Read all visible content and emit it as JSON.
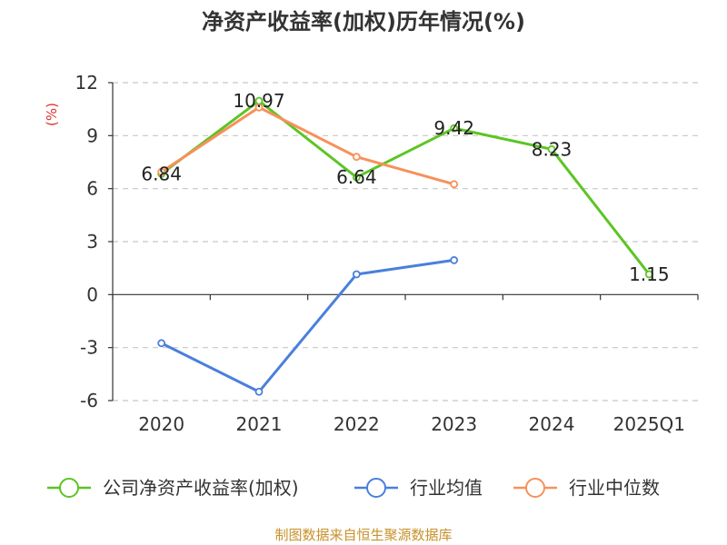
{
  "chart_data": {
    "type": "line",
    "title": "净资产收益率(加权)历年情况(%)",
    "ylabel": "(%)",
    "categories": [
      "2020",
      "2021",
      "2022",
      "2023",
      "2024",
      "2025Q1"
    ],
    "ylim": [
      -6,
      12
    ],
    "yticks": [
      12,
      9,
      6,
      3,
      0,
      -3,
      -6
    ],
    "grid": true,
    "legend_position": "bottom",
    "series": [
      {
        "name": "公司净资产收益率(加权)",
        "color": "#5cc524",
        "values": [
          6.84,
          10.97,
          6.64,
          9.42,
          8.23,
          1.15
        ],
        "labels": [
          "6.84",
          "10.97",
          "6.64",
          "9.42",
          "8.23",
          "1.15"
        ]
      },
      {
        "name": "行业均值",
        "color": "#4a7fdc",
        "values": [
          -2.75,
          -5.5,
          1.15,
          1.95,
          null,
          null
        ]
      },
      {
        "name": "行业中位数",
        "color": "#f7915a",
        "values": [
          6.95,
          10.6,
          7.8,
          6.25,
          null,
          null
        ]
      }
    ]
  },
  "footer": {
    "source": "制图数据来自恒生聚源数据库"
  }
}
